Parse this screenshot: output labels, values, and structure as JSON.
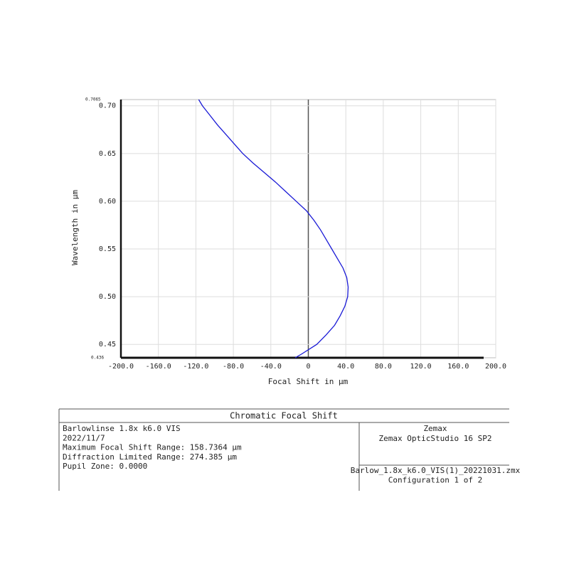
{
  "chart_data": {
    "type": "line",
    "title": "Chromatic Focal Shift",
    "x_label": "Focal Shift in µm",
    "y_label": "Wavelength in µm",
    "y": [
      0.436,
      0.44,
      0.45,
      0.46,
      0.47,
      0.48,
      0.49,
      0.5,
      0.51,
      0.52,
      0.53,
      0.54,
      0.55,
      0.56,
      0.57,
      0.58,
      0.59,
      0.6,
      0.61,
      0.62,
      0.63,
      0.64,
      0.65,
      0.66,
      0.67,
      0.68,
      0.69,
      0.7,
      0.7065
    ],
    "series": [
      {
        "name": "Focal Shift",
        "color": "#1a1ad6",
        "values": [
          -14,
          -7,
          9,
          19,
          28,
          34,
          39,
          42,
          42.5,
          41,
          37,
          31,
          25,
          19,
          13,
          6,
          -2,
          -13,
          -24,
          -35,
          -47,
          -59,
          -70,
          -79,
          -88,
          -97,
          -105,
          -113,
          -117
        ]
      }
    ],
    "xlim": [
      -200,
      200
    ],
    "xticks": [
      {
        "value": -200,
        "label": "-200.0"
      },
      {
        "value": -160,
        "label": "-160.0"
      },
      {
        "value": -120,
        "label": "-120.0"
      },
      {
        "value": -80,
        "label": "-80.0"
      },
      {
        "value": -40,
        "label": "-40.0"
      },
      0,
      {
        "value": 40,
        "label": "40.0"
      },
      {
        "value": 80,
        "label": "80.0"
      },
      {
        "value": 120,
        "label": "120.0"
      },
      {
        "value": 160,
        "label": "160.0"
      },
      {
        "value": 200,
        "label": "200.0"
      }
    ],
    "ylim": [
      0.436,
      0.7065
    ],
    "yticks": [
      {
        "value": 0.45,
        "label": "0.45"
      },
      {
        "value": 0.5,
        "label": "0.50"
      },
      {
        "value": 0.55,
        "label": "0.55"
      },
      {
        "value": 0.6,
        "label": "0.60"
      },
      {
        "value": 0.65,
        "label": "0.65"
      },
      {
        "value": 0.7,
        "label": "0.70"
      }
    ],
    "grid": true
  },
  "info": {
    "left": [
      "Barlowlinse 1.8x k6.0 VIS",
      "2022/11/7",
      "Maximum Focal Shift Range: 158.7364 µm",
      "Diffraction Limited Range: 274.385 µm",
      "Pupil Zone: 0.0000"
    ],
    "right_top": [
      "Zemax",
      "Zemax OpticStudio 16 SP2"
    ],
    "right_bottom": [
      "Barlow_1.8x_k6.0_VIS(1)_20221031.zmx",
      "Configuration 1 of 2"
    ]
  }
}
